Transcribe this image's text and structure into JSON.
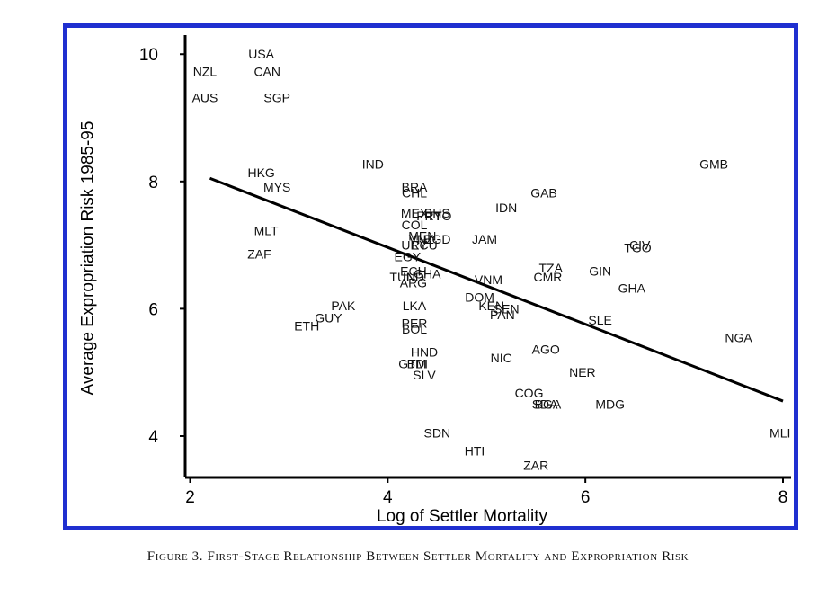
{
  "figure": {
    "caption": "Figure 3. First-Stage Relationship Between Settler Mortality and Expropriation Risk",
    "frame_color": "#1f2fd0"
  },
  "chart_data": {
    "type": "scatter",
    "xlabel": "Log of Settler Mortality",
    "ylabel": "Average Expropriation Risk 1985-95",
    "xlim": [
      1.95,
      8.1
    ],
    "ylim": [
      3.35,
      10.3
    ],
    "xticks": [
      2,
      4,
      6,
      8
    ],
    "yticks": [
      4,
      6,
      8,
      10
    ],
    "grid": false,
    "fit_line": {
      "x": [
        2.2,
        8.0
      ],
      "y": [
        8.05,
        4.55
      ]
    },
    "points": [
      {
        "label": "USA",
        "x": 2.72,
        "y": 10.0
      },
      {
        "label": "NZL",
        "x": 2.15,
        "y": 9.73
      },
      {
        "label": "CAN",
        "x": 2.78,
        "y": 9.73
      },
      {
        "label": "AUS",
        "x": 2.15,
        "y": 9.32
      },
      {
        "label": "SGP",
        "x": 2.88,
        "y": 9.32
      },
      {
        "label": "IND",
        "x": 3.85,
        "y": 8.27
      },
      {
        "label": "GMB",
        "x": 7.3,
        "y": 8.27
      },
      {
        "label": "HKG",
        "x": 2.72,
        "y": 8.14
      },
      {
        "label": "MYS",
        "x": 2.88,
        "y": 7.91
      },
      {
        "label": "BRA",
        "x": 4.27,
        "y": 7.91
      },
      {
        "label": "CHL",
        "x": 4.27,
        "y": 7.82
      },
      {
        "label": "GAB",
        "x": 5.58,
        "y": 7.82
      },
      {
        "label": "IDN",
        "x": 5.2,
        "y": 7.59
      },
      {
        "label": "MEX",
        "x": 4.27,
        "y": 7.5
      },
      {
        "label": "BHS",
        "x": 4.5,
        "y": 7.5
      },
      {
        "label": "PRY",
        "x": 4.42,
        "y": 7.46
      },
      {
        "label": "TTO",
        "x": 4.52,
        "y": 7.46
      },
      {
        "label": "COL",
        "x": 4.27,
        "y": 7.32
      },
      {
        "label": "MLT",
        "x": 2.77,
        "y": 7.23
      },
      {
        "label": "MEN",
        "x": 4.35,
        "y": 7.14
      },
      {
        "label": "JAM",
        "x": 4.98,
        "y": 7.09
      },
      {
        "label": "VNZ",
        "x": 4.34,
        "y": 7.09
      },
      {
        "label": "BGD",
        "x": 4.5,
        "y": 7.09
      },
      {
        "label": "URY",
        "x": 4.27,
        "y": 7.0
      },
      {
        "label": "ECU",
        "x": 4.37,
        "y": 7.0
      },
      {
        "label": "CIV",
        "x": 6.55,
        "y": 7.0
      },
      {
        "label": "TGO",
        "x": 6.53,
        "y": 6.96
      },
      {
        "label": "ZAF",
        "x": 2.7,
        "y": 6.86
      },
      {
        "label": "EGY",
        "x": 4.2,
        "y": 6.82
      },
      {
        "label": "TZA",
        "x": 5.65,
        "y": 6.64
      },
      {
        "label": "GIN",
        "x": 6.15,
        "y": 6.59
      },
      {
        "label": "ECH",
        "x": 4.26,
        "y": 6.59
      },
      {
        "label": "GHA",
        "x": 4.4,
        "y": 6.55
      },
      {
        "label": "CMR",
        "x": 5.62,
        "y": 6.5
      },
      {
        "label": "TUN",
        "x": 4.15,
        "y": 6.5
      },
      {
        "label": "IND",
        "x": 4.26,
        "y": 6.5
      },
      {
        "label": "VNM",
        "x": 5.02,
        "y": 6.46
      },
      {
        "label": "ARG",
        "x": 4.26,
        "y": 6.41
      },
      {
        "label": "GHA",
        "x": 6.47,
        "y": 6.32
      },
      {
        "label": "DOM",
        "x": 4.93,
        "y": 6.18
      },
      {
        "label": "PAK",
        "x": 3.55,
        "y": 6.05
      },
      {
        "label": "LKA",
        "x": 4.27,
        "y": 6.05
      },
      {
        "label": "KEN",
        "x": 5.05,
        "y": 6.05
      },
      {
        "label": "SEN",
        "x": 5.2,
        "y": 6.0
      },
      {
        "label": "GUY",
        "x": 3.4,
        "y": 5.86
      },
      {
        "label": "PAN",
        "x": 5.16,
        "y": 5.91
      },
      {
        "label": "SLE",
        "x": 6.15,
        "y": 5.82
      },
      {
        "label": "PER",
        "x": 4.27,
        "y": 5.77
      },
      {
        "label": "ETH",
        "x": 3.18,
        "y": 5.73
      },
      {
        "label": "BOL",
        "x": 4.27,
        "y": 5.68
      },
      {
        "label": "NGA",
        "x": 7.55,
        "y": 5.55
      },
      {
        "label": "AGO",
        "x": 5.6,
        "y": 5.36
      },
      {
        "label": "HND",
        "x": 4.37,
        "y": 5.32
      },
      {
        "label": "NIC",
        "x": 5.15,
        "y": 5.23
      },
      {
        "label": "GTM",
        "x": 4.25,
        "y": 5.14
      },
      {
        "label": "BDI",
        "x": 4.3,
        "y": 5.14
      },
      {
        "label": "SLV",
        "x": 4.37,
        "y": 4.96
      },
      {
        "label": "NER",
        "x": 5.97,
        "y": 5.0
      },
      {
        "label": "COG",
        "x": 5.43,
        "y": 4.68
      },
      {
        "label": "SDA",
        "x": 5.59,
        "y": 4.5
      },
      {
        "label": "BGA",
        "x": 5.62,
        "y": 4.5
      },
      {
        "label": "MDG",
        "x": 6.25,
        "y": 4.5
      },
      {
        "label": "SDN",
        "x": 4.5,
        "y": 4.05
      },
      {
        "label": "MLI",
        "x": 7.97,
        "y": 4.05
      },
      {
        "label": "HTI",
        "x": 4.88,
        "y": 3.77
      },
      {
        "label": "ZAR",
        "x": 5.5,
        "y": 3.54
      }
    ]
  }
}
